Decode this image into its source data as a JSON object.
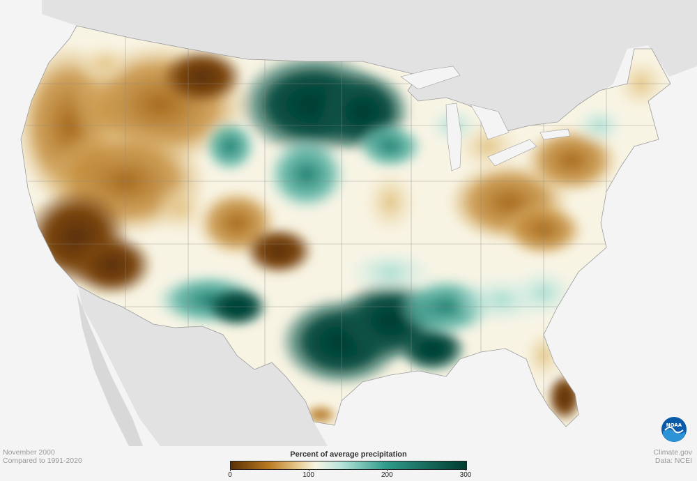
{
  "map": {
    "title": "",
    "period": "November 2000",
    "baseline": "Compared to 1991-2020",
    "credit_site": "Climate.gov",
    "credit_data": "Data: NCEI",
    "logo_text": "NOAA"
  },
  "legend": {
    "title": "Percent of average precipitation",
    "min": 0,
    "max": 300,
    "ticks": [
      {
        "value": 0,
        "label": "0"
      },
      {
        "value": 100,
        "label": "100"
      },
      {
        "value": 200,
        "label": "200"
      },
      {
        "value": 300,
        "label": "300"
      }
    ],
    "colors": {
      "dry_dark": "#5a3005",
      "dry": "#b8791f",
      "dry_light": "#e6c88a",
      "normal": "#f8f4e4",
      "wet_light": "#bde6dd",
      "wet": "#2f9b8a",
      "wet_dark": "#003b30"
    }
  }
}
